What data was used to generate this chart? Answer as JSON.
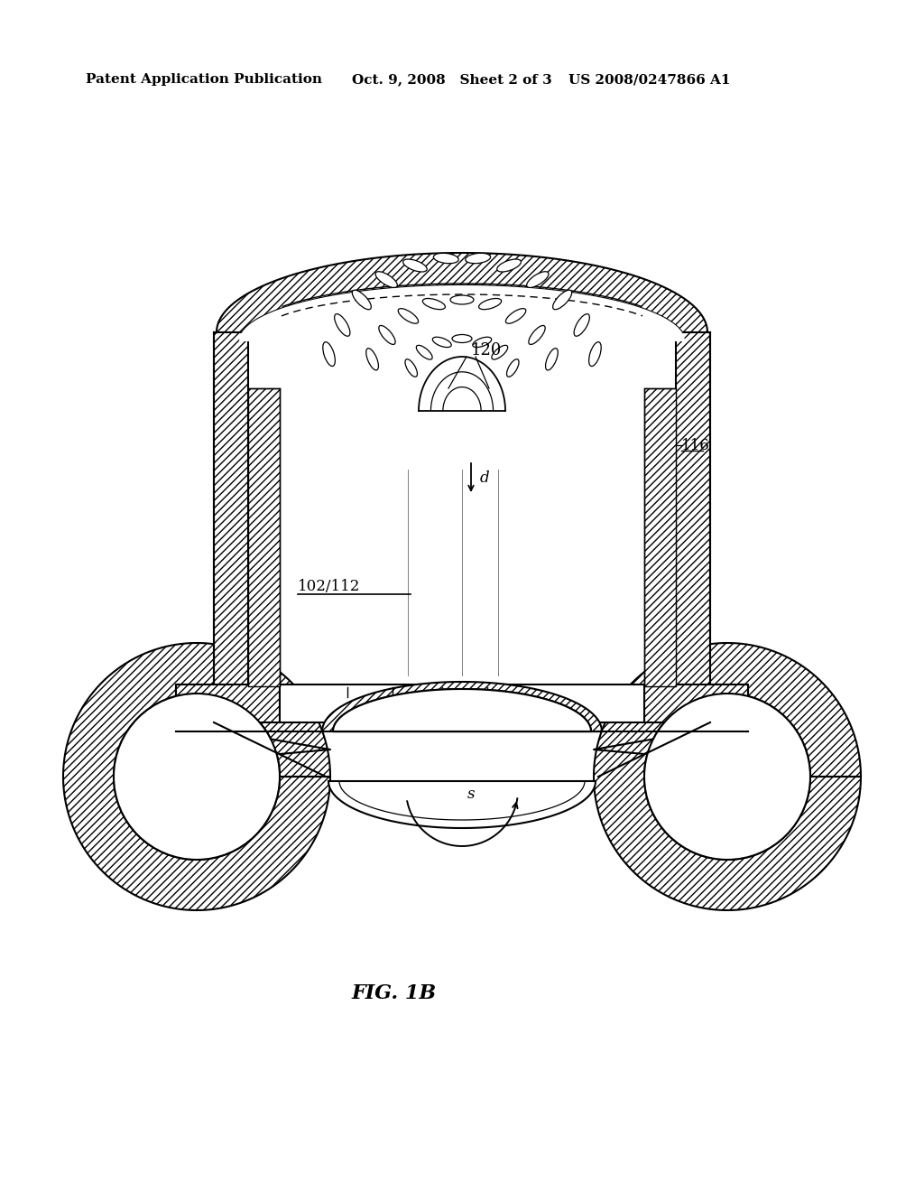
{
  "bg_color": "#ffffff",
  "line_color": "#000000",
  "header_left": "Patent Application Publication",
  "header_mid": "Oct. 9, 2008   Sheet 2 of 3",
  "header_right": "US 2008/0247866 A1",
  "header_fontsize": 11,
  "fig_label": "FIG. 1B",
  "fig_label_fontsize": 16,
  "label_120": "120",
  "label_116": "116",
  "label_102_112": "102/112",
  "label_d": "d",
  "label_s": "s"
}
